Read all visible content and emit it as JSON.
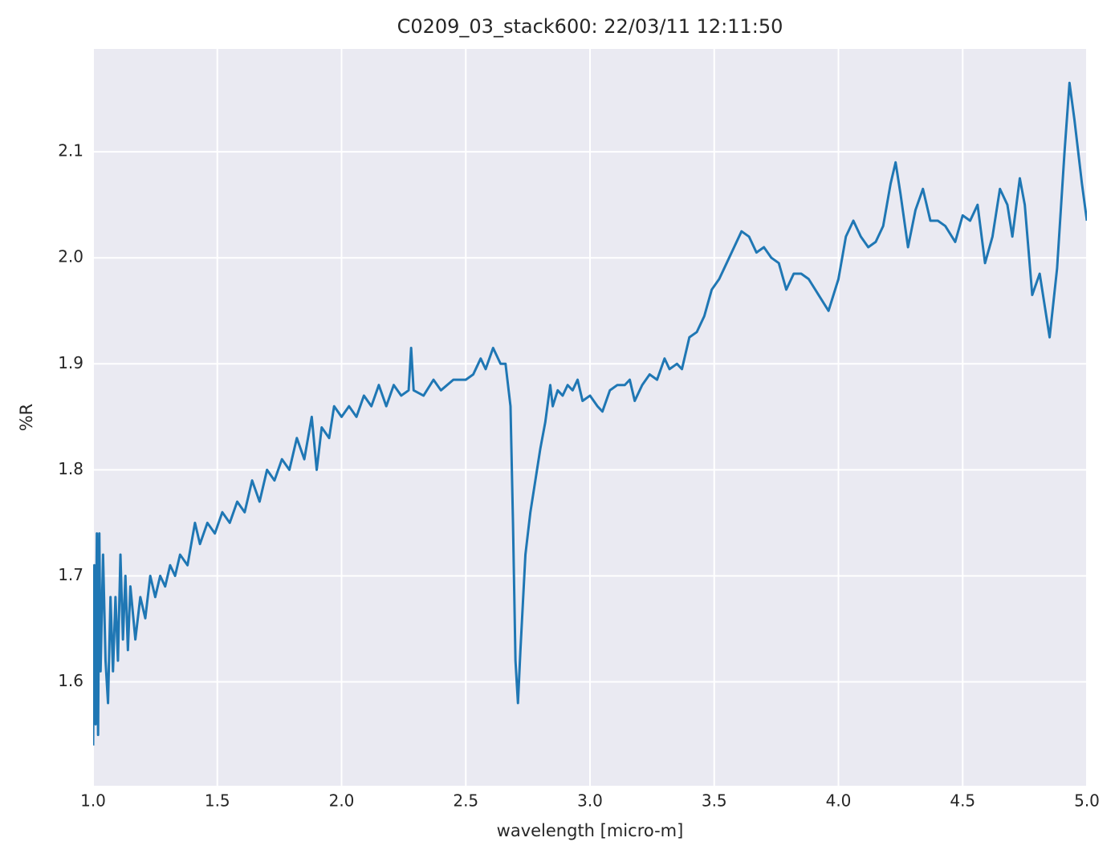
{
  "chart_data": {
    "type": "line",
    "title": "C0209_03_stack600:  22/03/11 12:11:50",
    "xlabel": "wavelength [micro-m]",
    "ylabel": "%R",
    "xlim": [
      1.0,
      5.0
    ],
    "ylim": [
      1.502,
      2.197
    ],
    "xticks": [
      {
        "value": 1.0,
        "label": "1.0"
      },
      1.5,
      {
        "value": 2.0,
        "label": "2.0"
      },
      2.5,
      {
        "value": 3.0,
        "label": "3.0"
      },
      3.5,
      {
        "value": 4.0,
        "label": "4.0"
      },
      4.5,
      {
        "value": 5.0,
        "label": "5.0"
      }
    ],
    "yticks": [
      1.6,
      1.7,
      1.8,
      1.9,
      {
        "value": 2.0,
        "label": "2.0"
      },
      2.1
    ],
    "grid": true,
    "background": "#eaeaf2",
    "series": [
      {
        "color": "#1f77b4",
        "x": [
          1.0,
          1.005,
          1.01,
          1.015,
          1.02,
          1.025,
          1.03,
          1.04,
          1.05,
          1.06,
          1.07,
          1.08,
          1.09,
          1.1,
          1.11,
          1.12,
          1.13,
          1.14,
          1.15,
          1.17,
          1.19,
          1.21,
          1.23,
          1.25,
          1.27,
          1.29,
          1.31,
          1.33,
          1.35,
          1.38,
          1.41,
          1.43,
          1.46,
          1.49,
          1.52,
          1.55,
          1.58,
          1.61,
          1.64,
          1.67,
          1.7,
          1.73,
          1.76,
          1.79,
          1.82,
          1.85,
          1.88,
          1.9,
          1.92,
          1.95,
          1.97,
          2.0,
          2.03,
          2.06,
          2.09,
          2.12,
          2.15,
          2.18,
          2.21,
          2.24,
          2.27,
          2.28,
          2.29,
          2.33,
          2.37,
          2.4,
          2.45,
          2.5,
          2.53,
          2.56,
          2.58,
          2.61,
          2.64,
          2.66,
          2.68,
          2.69,
          2.7,
          2.71,
          2.72,
          2.74,
          2.76,
          2.78,
          2.8,
          2.82,
          2.84,
          2.85,
          2.87,
          2.89,
          2.91,
          2.93,
          2.95,
          2.97,
          3.0,
          3.03,
          3.05,
          3.08,
          3.11,
          3.14,
          3.16,
          3.18,
          3.21,
          3.24,
          3.27,
          3.3,
          3.32,
          3.35,
          3.37,
          3.4,
          3.43,
          3.46,
          3.49,
          3.52,
          3.55,
          3.58,
          3.61,
          3.64,
          3.67,
          3.7,
          3.73,
          3.76,
          3.79,
          3.82,
          3.85,
          3.88,
          3.92,
          3.96,
          4.0,
          4.03,
          4.06,
          4.09,
          4.12,
          4.15,
          4.18,
          4.21,
          4.23,
          4.25,
          4.28,
          4.31,
          4.34,
          4.37,
          4.4,
          4.43,
          4.47,
          4.5,
          4.53,
          4.56,
          4.59,
          4.62,
          4.65,
          4.68,
          4.7,
          4.73,
          4.75,
          4.78,
          4.81,
          4.85,
          4.88,
          4.91,
          4.93,
          4.95,
          4.98,
          5.0
        ],
        "values": [
          1.54,
          1.71,
          1.56,
          1.74,
          1.55,
          1.74,
          1.61,
          1.72,
          1.62,
          1.58,
          1.68,
          1.61,
          1.68,
          1.62,
          1.72,
          1.64,
          1.7,
          1.63,
          1.69,
          1.64,
          1.68,
          1.66,
          1.7,
          1.68,
          1.7,
          1.69,
          1.71,
          1.7,
          1.72,
          1.71,
          1.75,
          1.73,
          1.75,
          1.74,
          1.76,
          1.75,
          1.77,
          1.76,
          1.79,
          1.77,
          1.8,
          1.79,
          1.81,
          1.8,
          1.83,
          1.81,
          1.85,
          1.8,
          1.84,
          1.83,
          1.86,
          1.85,
          1.86,
          1.85,
          1.87,
          1.86,
          1.88,
          1.86,
          1.88,
          1.87,
          1.875,
          1.915,
          1.875,
          1.87,
          1.885,
          1.875,
          1.885,
          1.885,
          1.89,
          1.905,
          1.895,
          1.915,
          1.9,
          1.9,
          1.86,
          1.75,
          1.62,
          1.58,
          1.63,
          1.72,
          1.76,
          1.79,
          1.82,
          1.845,
          1.88,
          1.86,
          1.875,
          1.87,
          1.88,
          1.875,
          1.885,
          1.865,
          1.87,
          1.86,
          1.855,
          1.875,
          1.88,
          1.88,
          1.885,
          1.865,
          1.88,
          1.89,
          1.885,
          1.905,
          1.895,
          1.9,
          1.895,
          1.925,
          1.93,
          1.945,
          1.97,
          1.98,
          1.995,
          2.01,
          2.025,
          2.02,
          2.005,
          2.01,
          2.0,
          1.995,
          1.97,
          1.985,
          1.985,
          1.98,
          1.965,
          1.95,
          1.98,
          2.02,
          2.035,
          2.02,
          2.01,
          2.015,
          2.03,
          2.07,
          2.09,
          2.06,
          2.01,
          2.045,
          2.065,
          2.035,
          2.035,
          2.03,
          2.015,
          2.04,
          2.035,
          2.05,
          1.995,
          2.02,
          2.065,
          2.05,
          2.02,
          2.075,
          2.05,
          1.965,
          1.985,
          1.925,
          1.99,
          2.1,
          2.165,
          2.13,
          2.07,
          2.035
        ]
      }
    ]
  }
}
